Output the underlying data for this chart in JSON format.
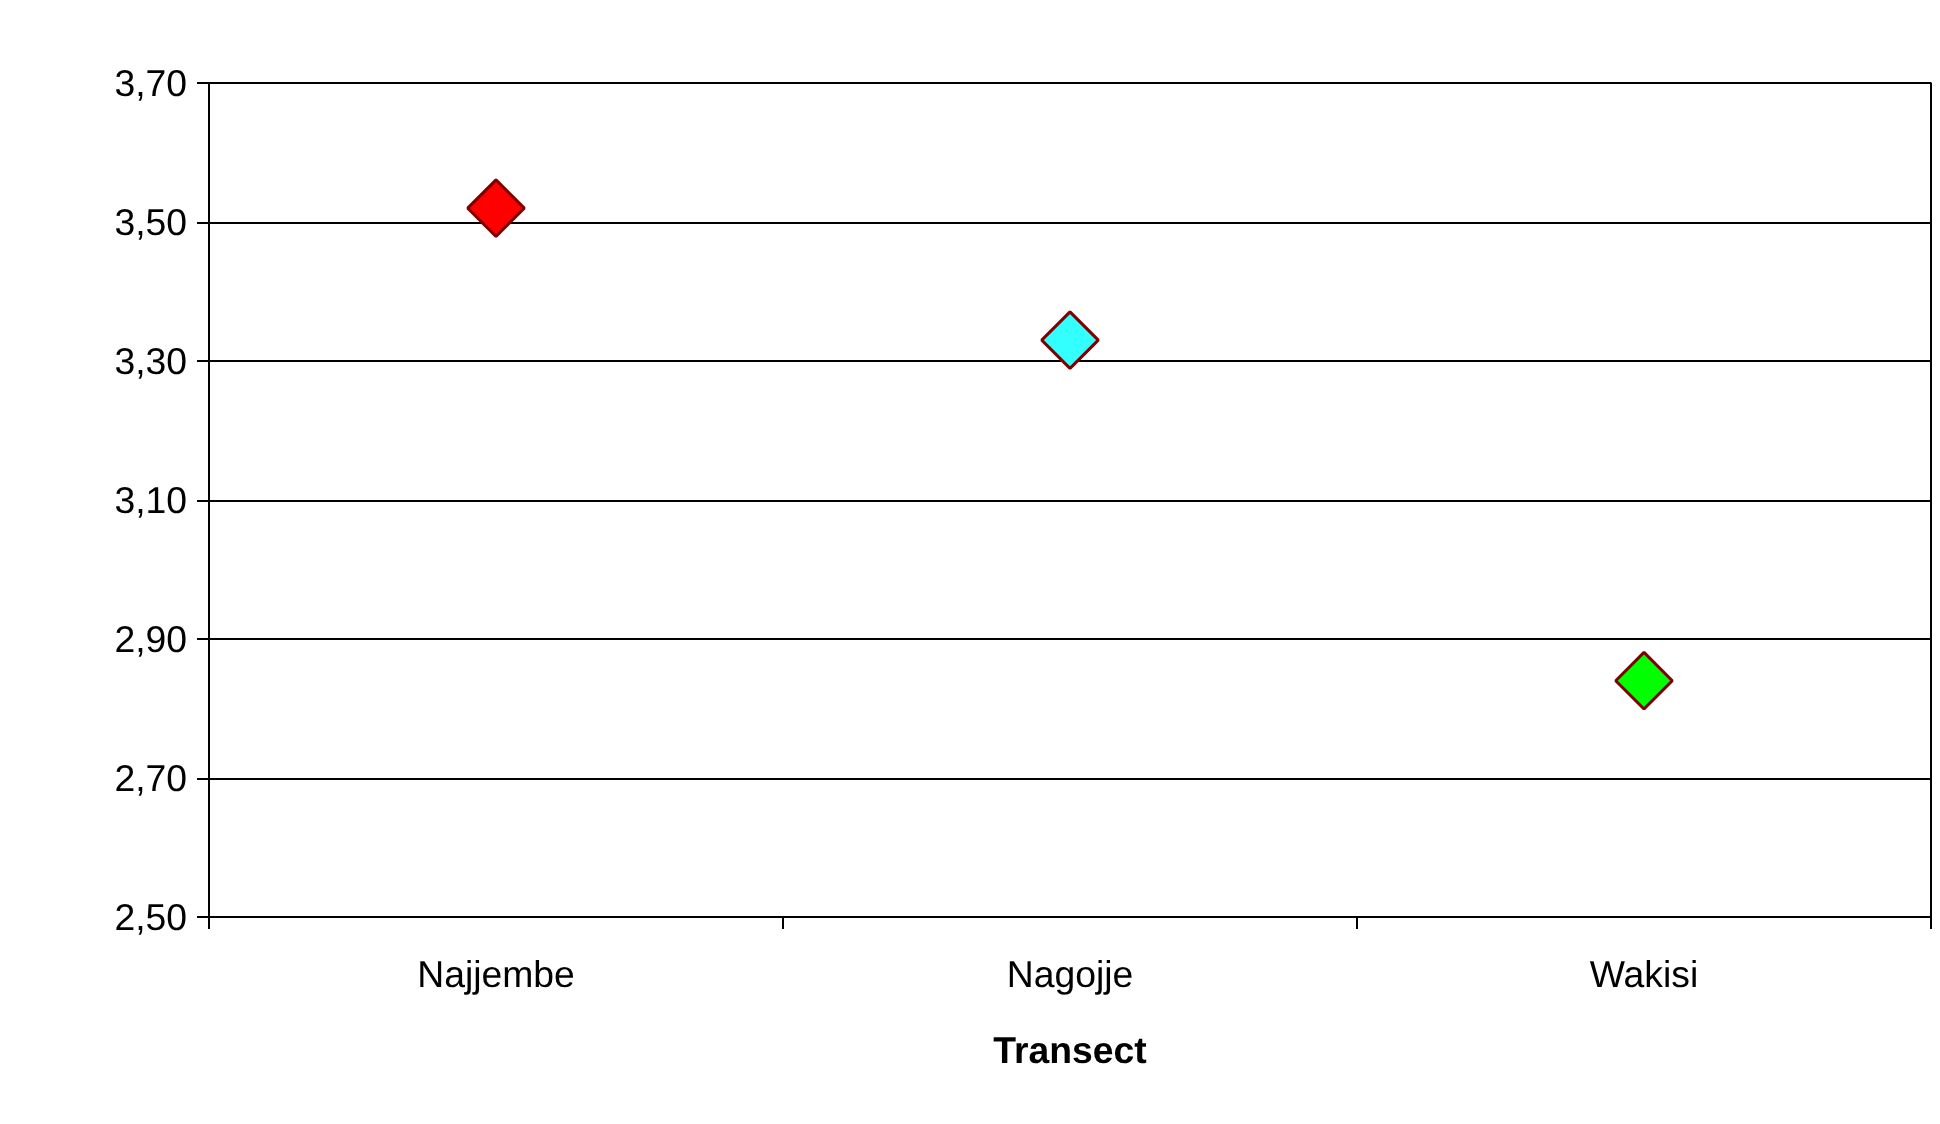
{
  "chart_data": {
    "type": "scatter",
    "xlabel": "Transect",
    "categories": [
      "Najjembe",
      "Nagojje",
      "Wakisi"
    ],
    "values": [
      3.52,
      3.33,
      2.84
    ],
    "colors": [
      "#ff0000",
      "#33ffff",
      "#00ff00"
    ],
    "marker": "diamond",
    "grid": "y",
    "ylim": [
      2.5,
      3.7
    ],
    "yticks": [
      {
        "value": 2.5,
        "label": "2,50"
      },
      {
        "value": 2.7,
        "label": "2,70"
      },
      {
        "value": 2.9,
        "label": "2,90"
      },
      {
        "value": 3.1,
        "label": "3,10"
      },
      {
        "value": 3.3,
        "label": "3,30"
      },
      {
        "value": 3.5,
        "label": "3,50"
      },
      {
        "value": 3.7,
        "label": "3,70"
      }
    ]
  }
}
